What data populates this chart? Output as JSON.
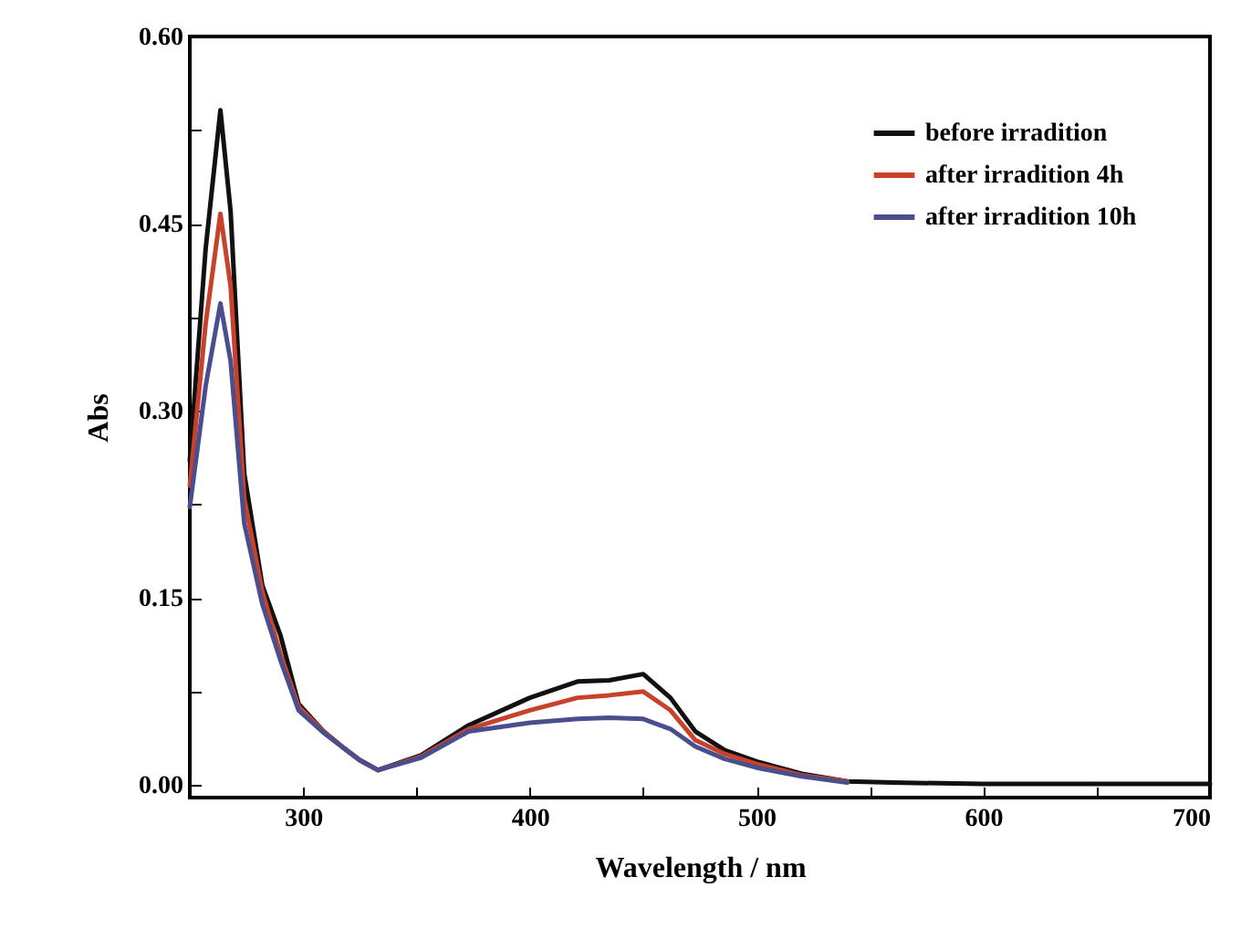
{
  "chart_data": {
    "type": "line",
    "xlabel": "Wavelength / nm",
    "ylabel": "Abs",
    "x": [
      250,
      257,
      263.5,
      268,
      274,
      282,
      290,
      298,
      309,
      317,
      325,
      333,
      352,
      373,
      400,
      421,
      435,
      450,
      462,
      473,
      486,
      500,
      520,
      540,
      560,
      600,
      650,
      700
    ],
    "xlim": [
      250,
      700
    ],
    "xticks": [
      {
        "value": 250,
        "label": null
      },
      300,
      {
        "value": 350,
        "label": null
      },
      400,
      {
        "value": 450,
        "label": null
      },
      500,
      {
        "value": 550,
        "label": null
      },
      600,
      {
        "value": 650,
        "label": null
      },
      700
    ],
    "ylim": [
      -0.01,
      0.6
    ],
    "yticks": [
      {
        "value": 0,
        "label": "0.00"
      },
      {
        "value": 0.075,
        "label": null
      },
      {
        "value": 0.15,
        "label": "0.15"
      },
      {
        "value": 0.225,
        "label": null
      },
      {
        "value": 0.3,
        "label": "0.30"
      },
      {
        "value": 0.375,
        "label": null
      },
      {
        "value": 0.45,
        "label": "0.45"
      },
      {
        "value": 0.525,
        "label": null
      },
      {
        "value": 0.6,
        "label": "0.60"
      }
    ],
    "grid": false,
    "legend": "top right",
    "marker": "none",
    "line_style": "solid",
    "series": [
      {
        "name": "before irradition",
        "color": "#111111",
        "values": [
          0.26,
          0.43,
          0.541,
          0.46,
          0.25,
          0.16,
          0.12,
          0.065,
          0.043,
          0.031,
          0.02,
          0.012,
          0.024,
          0.048,
          0.07,
          0.083,
          0.084,
          0.089,
          0.07,
          0.043,
          0.028,
          0.019,
          0.009,
          0.003,
          0.002,
          0.001,
          0.001,
          0.001
        ]
      },
      {
        "name": "after irradition 4h",
        "color": "#c8412a",
        "values": [
          0.24,
          0.37,
          0.458,
          0.4,
          0.23,
          0.155,
          0.105,
          0.063,
          0.043,
          0.031,
          0.02,
          0.012,
          0.023,
          0.045,
          0.06,
          0.07,
          0.072,
          0.075,
          0.06,
          0.036,
          0.025,
          0.017,
          0.008,
          0.003,
          null,
          null,
          null,
          null
        ]
      },
      {
        "name": "after irradition 10h",
        "color": "#4a4e8c",
        "values": [
          0.223,
          0.32,
          0.386,
          0.34,
          0.21,
          0.145,
          0.1,
          0.06,
          0.042,
          0.031,
          0.02,
          0.012,
          0.022,
          0.043,
          0.05,
          0.053,
          0.054,
          0.053,
          0.045,
          0.031,
          0.021,
          0.014,
          0.007,
          0.002,
          null,
          null,
          null,
          null
        ]
      }
    ]
  }
}
